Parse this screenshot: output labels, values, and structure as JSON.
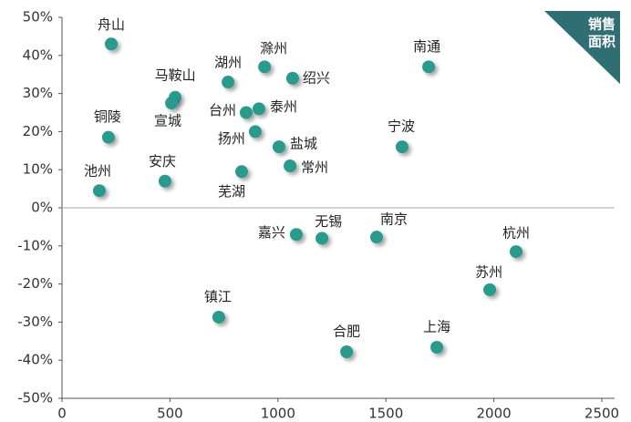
{
  "chart_data": {
    "type": "scatter",
    "badge": [
      "销售",
      "面积"
    ],
    "color": "#2a9a8c",
    "points": [
      {
        "label": "舟山",
        "x": 228,
        "y": 43
      },
      {
        "label": "马鞍山",
        "x": 524,
        "y": 29
      },
      {
        "label": "宣城",
        "x": 507,
        "y": 27.5
      },
      {
        "label": "湖州",
        "x": 769,
        "y": 33
      },
      {
        "label": "滁州",
        "x": 938,
        "y": 37
      },
      {
        "label": "绍兴",
        "x": 1068,
        "y": 34
      },
      {
        "label": "南通",
        "x": 1698,
        "y": 37
      },
      {
        "label": "台州",
        "x": 853,
        "y": 25
      },
      {
        "label": "泰州",
        "x": 912,
        "y": 26
      },
      {
        "label": "铜陵",
        "x": 215,
        "y": 18.5
      },
      {
        "label": "扬州",
        "x": 895,
        "y": 20
      },
      {
        "label": "盐城",
        "x": 1005,
        "y": 16
      },
      {
        "label": "宁波",
        "x": 1575,
        "y": 16
      },
      {
        "label": "常州",
        "x": 1056,
        "y": 11
      },
      {
        "label": "安庆",
        "x": 477,
        "y": 7
      },
      {
        "label": "芜湖",
        "x": 832,
        "y": 9.5
      },
      {
        "label": "池州",
        "x": 173,
        "y": 4.5
      },
      {
        "label": "嘉兴",
        "x": 1085,
        "y": -7
      },
      {
        "label": "无锡",
        "x": 1204,
        "y": -8
      },
      {
        "label": "南京",
        "x": 1457,
        "y": -7.7
      },
      {
        "label": "杭州",
        "x": 2103,
        "y": -11.5
      },
      {
        "label": "苏州",
        "x": 1981,
        "y": -21.5
      },
      {
        "label": "镇江",
        "x": 726,
        "y": -28.7
      },
      {
        "label": "合肥",
        "x": 1318,
        "y": -37.8
      },
      {
        "label": "上海",
        "x": 1736,
        "y": -36.6
      }
    ],
    "xlim": [
      0,
      2500
    ],
    "xticks": [
      0,
      500,
      1000,
      1500,
      2000,
      2500
    ],
    "ylim": [
      -50,
      50
    ],
    "yticks": [
      {
        "value": -50,
        "label": "-50%"
      },
      {
        "value": -40,
        "label": "-40%"
      },
      {
        "value": -30,
        "label": "-30%"
      },
      {
        "value": -20,
        "label": "-20%"
      },
      {
        "value": -10,
        "label": "-10%"
      },
      {
        "value": 0,
        "label": "0%"
      },
      {
        "value": 10,
        "label": "10%"
      },
      {
        "value": 20,
        "label": "20%"
      },
      {
        "value": 30,
        "label": "30%"
      },
      {
        "value": 40,
        "label": "40%"
      },
      {
        "value": 50,
        "label": "50%"
      }
    ]
  }
}
